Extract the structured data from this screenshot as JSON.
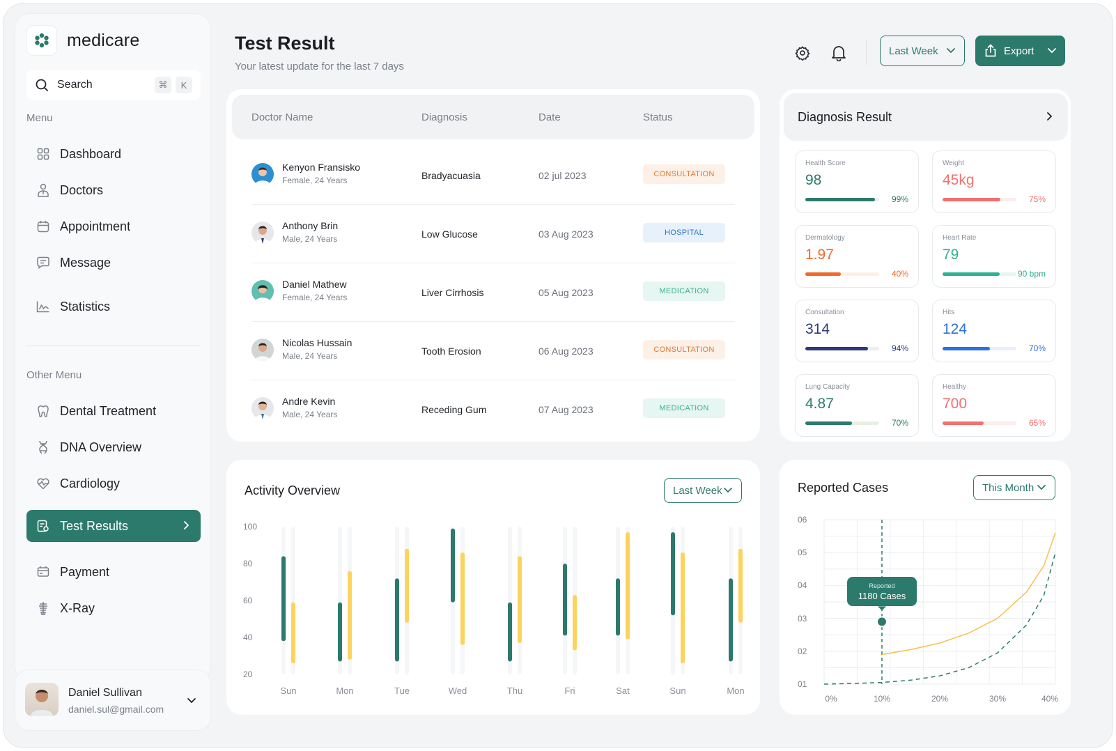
{
  "brand": {
    "name": "medicare"
  },
  "search": {
    "label": "Search",
    "key1": "⌘",
    "key2": "K"
  },
  "menu": {
    "label": "Menu",
    "items": [
      "Dashboard",
      "Doctors",
      "Appointment",
      "Message",
      "Statistics"
    ]
  },
  "other_menu": {
    "label": "Other Menu",
    "items": [
      "Dental Treatment",
      "DNA Overview",
      "Cardiology",
      "Test Results",
      "Payment",
      "X-Ray"
    ],
    "active": "Test Results"
  },
  "user": {
    "name": "Daniel Sullivan",
    "email": "daniel.sul@gmail.com"
  },
  "header": {
    "title": "Test Result",
    "subtitle": "Your latest update for the last 7 days",
    "period_label": "Last Week",
    "export_label": "Export"
  },
  "table": {
    "columns": [
      "Doctor Name",
      "Diagnosis",
      "Date",
      "Status"
    ],
    "rows": [
      {
        "name": "Kenyon Fransisko",
        "meta": "Female, 24 Years",
        "diagnosis": "Bradyacuasia",
        "date": "02 jul 2023",
        "status": "CONSULTATION"
      },
      {
        "name": "Anthony Brin",
        "meta": "Male, 24 Years",
        "diagnosis": "Low Glucose",
        "date": "03 Aug 2023",
        "status": "HOSPITAL"
      },
      {
        "name": "Daniel Mathew",
        "meta": "Female, 24 Years",
        "diagnosis": "Liver Cirrhosis",
        "date": "05 Aug 2023",
        "status": "MEDICATION"
      },
      {
        "name": "Nicolas Hussain",
        "meta": "Male, 24 Years",
        "diagnosis": "Tooth Erosion",
        "date": "06 Aug 2023",
        "status": "CONSULTATION"
      },
      {
        "name": "Andre Kevin",
        "meta": "Male, 24 Years",
        "diagnosis": "Receding Gum",
        "date": "07 Aug 2023",
        "status": "MEDICATION"
      }
    ]
  },
  "diagnosis": {
    "title": "Diagnosis Result",
    "metrics": [
      {
        "label": "Health Score",
        "value": "98",
        "pct": "99%",
        "fill": 0.94,
        "color": "#2c7a6b",
        "track": "#e8ecec",
        "pcolor": "#2c7a6b"
      },
      {
        "label": "Weight",
        "value": "45kg",
        "pct": "75%",
        "fill": 0.78,
        "color": "#f2706f",
        "track": "#fbeeee",
        "pcolor": "#f2706f"
      },
      {
        "label": "Dermatology",
        "value": "1.97",
        "pct": "40%",
        "fill": 0.48,
        "color": "#ee6a2a",
        "track": "#fdefe6",
        "pcolor": "#ee6a2a"
      },
      {
        "label": "Heart Rate",
        "value": "79",
        "pct": "90 bpm",
        "fill": 0.77,
        "color": "#2fb090",
        "track": "#e6f5f0",
        "pcolor": "#2fb090"
      },
      {
        "label": "Consultation",
        "value": "314",
        "pct": "94%",
        "fill": 0.85,
        "color": "#2e3a78",
        "track": "#eceef4",
        "pcolor": "#2e3a78"
      },
      {
        "label": "Hits",
        "value": "124",
        "pct": "70%",
        "fill": 0.64,
        "color": "#2f6fe0",
        "track": "#e9f0fc",
        "pcolor": "#2f6fe0"
      },
      {
        "label": "Lung Capacity",
        "value": "4.87",
        "pct": "70%",
        "fill": 0.63,
        "color": "#2c7a6b",
        "track": "#e5f1e4",
        "pcolor": "#2c7a6b"
      },
      {
        "label": "Healthy",
        "value": "700",
        "pct": "65%",
        "fill": 0.56,
        "color": "#f2706f",
        "track": "#fbeeee",
        "pcolor": "#f2706f"
      }
    ]
  },
  "activity": {
    "title": "Activity Overview",
    "period_label": "Last Week"
  },
  "reported": {
    "title": "Reported Cases",
    "period_label": "This Month",
    "tooltip_label": "Reported",
    "tooltip_value": "1180 Cases"
  },
  "chart_data": [
    {
      "type": "bar",
      "title": "Activity Overview",
      "categories": [
        "Sun",
        "Mon",
        "Tue",
        "Wed",
        "Thu",
        "Fri",
        "Sat",
        "Sun",
        "Mon"
      ],
      "y_ticks": [
        "100",
        "80",
        "60",
        "40",
        "20"
      ],
      "ylim": [
        20,
        100
      ],
      "series": [
        {
          "color": "#2c7a6b",
          "ranges": [
            [
              38,
              84
            ],
            [
              27,
              59
            ],
            [
              27,
              72
            ],
            [
              59,
              99
            ],
            [
              27,
              59
            ],
            [
              41,
              80
            ],
            [
              41,
              72
            ],
            [
              52,
              97
            ],
            [
              27,
              72
            ]
          ]
        },
        {
          "color": "#fcd35c",
          "ranges": [
            [
              26,
              59
            ],
            [
              28,
              76
            ],
            [
              48,
              88
            ],
            [
              36,
              86
            ],
            [
              37,
              84
            ],
            [
              33,
              63
            ],
            [
              39,
              97
            ],
            [
              26,
              86
            ],
            [
              48,
              88
            ]
          ]
        }
      ]
    },
    {
      "type": "line",
      "title": "Reported Cases",
      "x_ticks": [
        "0%",
        "10%",
        "20%",
        "30%",
        "40%"
      ],
      "y_ticks": [
        "06",
        "05",
        "04",
        "03",
        "02",
        "01"
      ],
      "xlim": [
        0,
        40
      ],
      "ylim": [
        1,
        6
      ],
      "series": [
        {
          "style": "solid",
          "color": "#f6c14f",
          "x": [
            10,
            15,
            20,
            25,
            30,
            35,
            38,
            40
          ],
          "y": [
            1.9,
            2.05,
            2.25,
            2.55,
            3.0,
            3.8,
            4.6,
            5.6
          ]
        },
        {
          "style": "dashed",
          "color": "#2c7a6b",
          "x": [
            0,
            5,
            10,
            15,
            20,
            25,
            30,
            35,
            38,
            40
          ],
          "y": [
            1.0,
            1.02,
            1.05,
            1.12,
            1.25,
            1.5,
            1.95,
            2.8,
            3.7,
            5.0
          ]
        }
      ],
      "marker": {
        "x": 10,
        "y": 2.9
      }
    }
  ]
}
